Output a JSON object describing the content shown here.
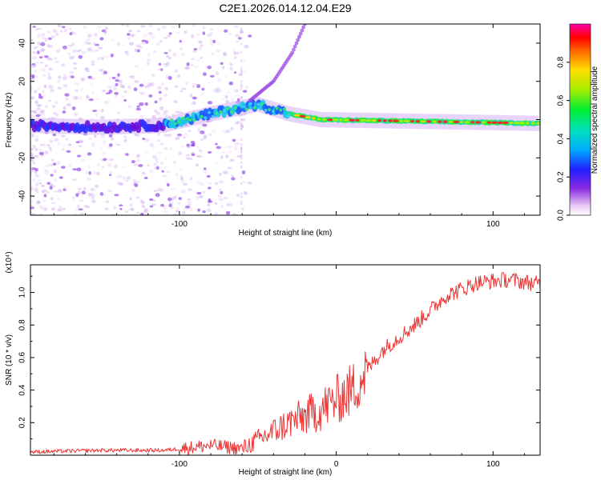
{
  "title": "C2E1.2026.014.12.04.E29",
  "chart_data": [
    {
      "type": "heatmap",
      "title": "C2E1.2026.014.12.04.E29",
      "xlabel": "Height of straight line (km)",
      "ylabel": "Frequency (Hz)",
      "xlim": [
        -195,
        130
      ],
      "ylim": [
        -50,
        50
      ],
      "x_ticks": [
        -100,
        0,
        100
      ],
      "x_tick_labels": [
        "-100",
        "",
        "100"
      ],
      "y_ticks": [
        40,
        20,
        0,
        -20,
        -40
      ],
      "y_tick_labels": [
        "40",
        "20",
        "0",
        "-20",
        "-40"
      ],
      "ridge": {
        "description_points": [
          {
            "x": -195,
            "y": -3
          },
          {
            "x": -150,
            "y": -4
          },
          {
            "x": -110,
            "y": -3
          },
          {
            "x": -80,
            "y": 3
          },
          {
            "x": -50,
            "y": 8
          },
          {
            "x": -30,
            "y": 3
          },
          {
            "x": -10,
            "y": 0
          },
          {
            "x": 130,
            "y": -2
          }
        ],
        "branch_points": [
          {
            "x": -55,
            "y": 10
          },
          {
            "x": -40,
            "y": 20
          },
          {
            "x": -28,
            "y": 35
          },
          {
            "x": -20,
            "y": 50
          }
        ]
      },
      "colorbar": {
        "label": "Normalized spectral amplitude",
        "range": [
          0,
          1
        ],
        "ticks": [
          0.0,
          0.2,
          0.4,
          0.6,
          0.8
        ],
        "tick_labels": [
          "0.0",
          "0.2",
          "0.4",
          "0.6",
          "0.8"
        ]
      }
    },
    {
      "type": "line",
      "xlabel": "Height of straight line (km)",
      "ylabel": "SNR (10 * v/v)",
      "exponent_label": "(x10⁴)",
      "xlim": [
        -195,
        130
      ],
      "ylim": [
        0,
        1.17
      ],
      "x_ticks": [
        -100,
        0,
        100
      ],
      "x_tick_labels": [
        "-100",
        "0",
        "100"
      ],
      "y_ticks": [
        0.2,
        0.4,
        0.6,
        0.8,
        1.0
      ],
      "y_tick_labels": [
        "0.2",
        "0.4",
        "0.6",
        "0.8",
        "1.0"
      ],
      "series": [
        {
          "name": "SNR",
          "color": "#ee3333",
          "points": [
            {
              "x": -195,
              "y": 0.02
            },
            {
              "x": -150,
              "y": 0.03
            },
            {
              "x": -110,
              "y": 0.03
            },
            {
              "x": -80,
              "y": 0.06
            },
            {
              "x": -60,
              "y": 0.04
            },
            {
              "x": -45,
              "y": 0.12
            },
            {
              "x": -30,
              "y": 0.2
            },
            {
              "x": -10,
              "y": 0.28
            },
            {
              "x": 10,
              "y": 0.4
            },
            {
              "x": 30,
              "y": 0.65
            },
            {
              "x": 50,
              "y": 0.8
            },
            {
              "x": 70,
              "y": 0.98
            },
            {
              "x": 90,
              "y": 1.06
            },
            {
              "x": 110,
              "y": 1.08
            },
            {
              "x": 130,
              "y": 1.05
            }
          ]
        }
      ]
    }
  ]
}
